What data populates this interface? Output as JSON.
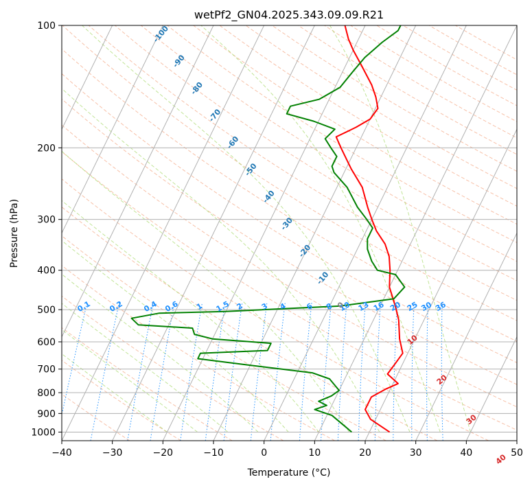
{
  "chart_data": {
    "type": "line",
    "title": "wetPf2_GN04.2025.343.09.09.R21",
    "xlabel": "Temperature (°C)",
    "ylabel": "Pressure (hPa)",
    "xlim": [
      -40,
      50
    ],
    "ylim": [
      1050,
      100
    ],
    "x_ticks": [
      "−40",
      "−30",
      "−20",
      "−10",
      "0",
      "10",
      "20",
      "30",
      "40",
      "50"
    ],
    "y_ticks": [
      {
        "p": 100,
        "label": "100"
      },
      {
        "p": 200,
        "label": "200"
      },
      {
        "p": 300,
        "label": "300"
      },
      {
        "p": 400,
        "label": "400"
      },
      {
        "p": 500,
        "label": "500"
      },
      {
        "p": 600,
        "label": "600"
      },
      {
        "p": 700,
        "label": "700"
      },
      {
        "p": 800,
        "label": "800"
      },
      {
        "p": 900,
        "label": "900"
      },
      {
        "p": 1000,
        "label": "1000"
      }
    ],
    "skew": 40,
    "colors": {
      "temperature": "#ff0000",
      "dewpoint": "#008000",
      "mixing": "#1e90ff",
      "isotherm_label": "#1f77b4",
      "theta_label": "#d62728",
      "grid": "#b0b0b0"
    },
    "series": [
      {
        "name": "Temperature",
        "points": [
          [
            24,
            1000
          ],
          [
            19,
            930
          ],
          [
            17,
            880
          ],
          [
            17,
            820
          ],
          [
            19,
            785
          ],
          [
            21,
            760
          ],
          [
            18,
            720
          ],
          [
            18.5,
            680
          ],
          [
            19,
            640
          ],
          [
            17,
            590
          ],
          [
            15,
            530
          ],
          [
            13,
            490
          ],
          [
            10,
            440
          ],
          [
            8.5,
            400
          ],
          [
            7,
            370
          ],
          [
            5,
            345
          ],
          [
            2,
            320
          ],
          [
            0,
            300
          ],
          [
            -2,
            280
          ],
          [
            -5,
            250
          ],
          [
            -9,
            225
          ],
          [
            -13,
            200
          ],
          [
            -15,
            188
          ],
          [
            -12,
            178
          ],
          [
            -10,
            170
          ],
          [
            -9.5,
            160
          ],
          [
            -11,
            150
          ],
          [
            -13,
            140
          ],
          [
            -17,
            125
          ],
          [
            -20,
            115
          ],
          [
            -22,
            108
          ],
          [
            -24,
            100
          ]
        ]
      },
      {
        "name": "Dew point",
        "points": [
          [
            16.5,
            1000
          ],
          [
            13.5,
            950
          ],
          [
            11,
            910
          ],
          [
            7,
            880
          ],
          [
            9,
            860
          ],
          [
            7,
            840
          ],
          [
            9,
            815
          ],
          [
            10,
            790
          ],
          [
            7,
            740
          ],
          [
            3,
            715
          ],
          [
            -10,
            685
          ],
          [
            -21,
            660
          ],
          [
            -21,
            640
          ],
          [
            -8,
            630
          ],
          [
            -8,
            605
          ],
          [
            -20,
            590
          ],
          [
            -24,
            575
          ],
          [
            -25,
            555
          ],
          [
            -36,
            545
          ],
          [
            -38,
            525
          ],
          [
            -33,
            510
          ],
          [
            -20,
            505
          ],
          [
            2,
            490
          ],
          [
            12,
            470
          ],
          [
            13,
            440
          ],
          [
            10,
            410
          ],
          [
            6,
            400
          ],
          [
            4,
            380
          ],
          [
            2,
            355
          ],
          [
            1,
            335
          ],
          [
            1,
            315
          ],
          [
            -1,
            300
          ],
          [
            -4,
            280
          ],
          [
            -8,
            250
          ],
          [
            -12,
            230
          ],
          [
            -13,
            222
          ],
          [
            -13,
            210
          ],
          [
            -15,
            200
          ],
          [
            -17,
            190
          ],
          [
            -16,
            180
          ],
          [
            -21,
            172
          ],
          [
            -27,
            165
          ],
          [
            -27,
            158
          ],
          [
            -22,
            152
          ],
          [
            -19,
            142
          ],
          [
            -18,
            130
          ],
          [
            -17,
            120
          ],
          [
            -15,
            110
          ],
          [
            -13,
            103
          ],
          [
            -13,
            100
          ]
        ]
      }
    ],
    "mixing_ratio_labels": [
      "0.1",
      "0.2",
      "0.4",
      "0.6",
      "1",
      "1.5",
      "2",
      "3",
      "4",
      "6",
      "8",
      "10",
      "13",
      "16",
      "20",
      "25",
      "30",
      "36"
    ],
    "isotherm_labels": [
      "-100",
      "-90",
      "-80",
      "-70",
      "-60",
      "-50",
      "-40",
      "-30",
      "-20",
      "-10",
      "0"
    ],
    "theta_e_labels": [
      "10",
      "20",
      "30",
      "40"
    ]
  }
}
